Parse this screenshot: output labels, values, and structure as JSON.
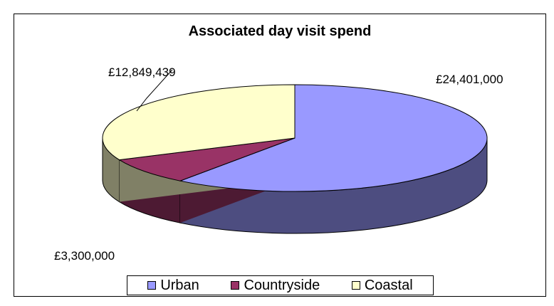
{
  "chart_data": {
    "type": "pie",
    "title": "Associated day visit spend",
    "categories": [
      "Urban",
      "Countryside",
      "Coastal"
    ],
    "values": [
      24401000,
      3300000,
      12849439
    ],
    "value_labels": [
      "£24,401,000",
      "£3,300,000",
      "£12,849,439"
    ],
    "colors": {
      "Urban": "#9999FF",
      "Countryside": "#993366",
      "Coastal": "#FFFFCC"
    },
    "style": "3d",
    "legend_position": "bottom"
  }
}
